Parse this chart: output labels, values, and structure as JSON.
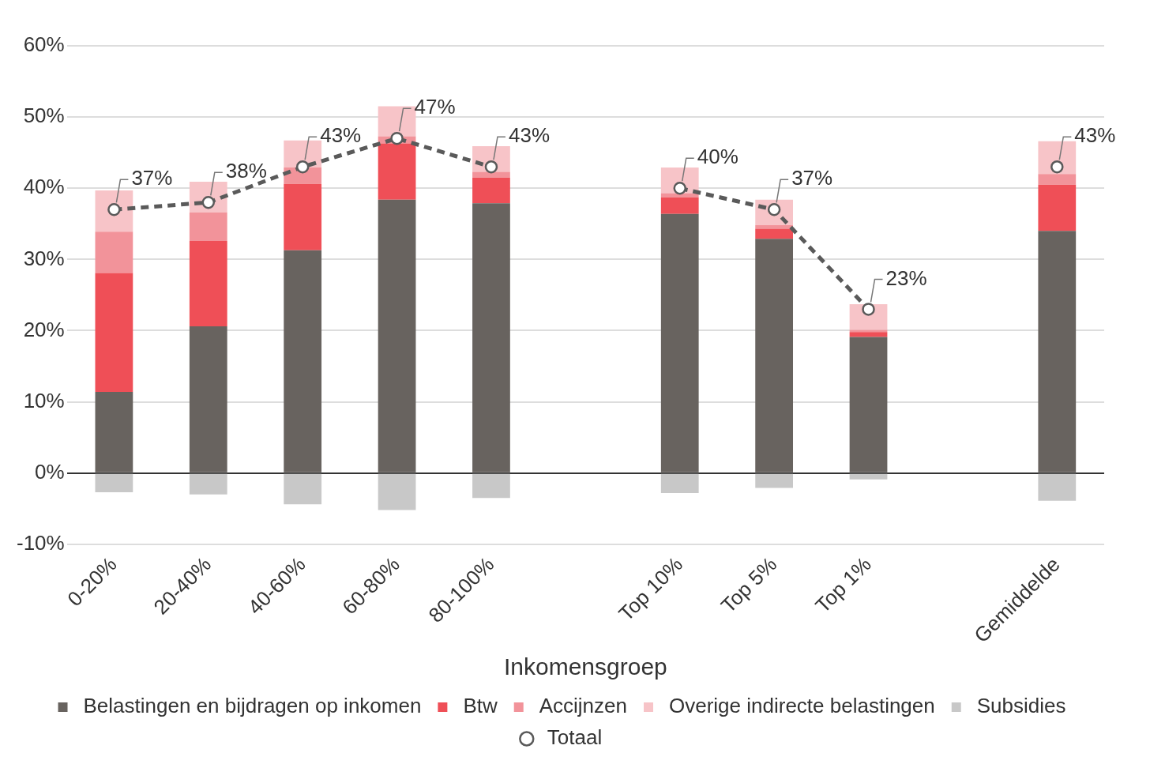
{
  "chart_data": {
    "type": "bar",
    "stacked": true,
    "xlabel": "Inkomensgroep",
    "categories": [
      "0-20%",
      "20-40%",
      "40-60%",
      "60-80%",
      "80-100%",
      null,
      "Top 10%",
      "Top 5%",
      "Top 1%",
      null,
      "Gemiddelde"
    ],
    "series": [
      {
        "name": "Belastingen en bijdragen op inkomen",
        "color": "#68635f",
        "values": [
          11.4,
          20.6,
          31.3,
          38.4,
          37.9,
          null,
          36.4,
          32.9,
          19.1,
          null,
          34.0
        ]
      },
      {
        "name": "Btw",
        "color": "#ef4f57",
        "values": [
          16.7,
          12.0,
          9.3,
          7.9,
          3.6,
          null,
          2.3,
          1.4,
          0.7,
          null,
          6.5
        ]
      },
      {
        "name": "Accijnzen",
        "color": "#f2939a",
        "values": [
          5.8,
          4.0,
          2.3,
          1.0,
          0.8,
          null,
          0.6,
          0.5,
          0.3,
          null,
          1.5
        ]
      },
      {
        "name": "Overige indirecte belastingen",
        "color": "#f7c4c8",
        "values": [
          5.8,
          4.3,
          3.8,
          4.2,
          3.6,
          null,
          3.6,
          3.6,
          3.6,
          null,
          4.6
        ]
      },
      {
        "name": "Subsidies",
        "color": "#c8c8c8",
        "values": [
          -2.7,
          -3.0,
          -4.4,
          -5.2,
          -3.5,
          null,
          -2.8,
          -2.1,
          -0.9,
          null,
          -3.9
        ]
      },
      {
        "name": "Totaal",
        "type": "line",
        "color": "#5a5a5a",
        "values": [
          37,
          38,
          43,
          47,
          43,
          null,
          40,
          37,
          23,
          null,
          43
        ],
        "value_labels": [
          "37%",
          "38%",
          "43%",
          "47%",
          "43%",
          null,
          "40%",
          "37%",
          "23%",
          null,
          "43%"
        ]
      }
    ],
    "ylim": [
      -10,
      60
    ],
    "yticks": [
      {
        "value": -10,
        "label": "-10%"
      },
      {
        "value": 0,
        "label": "0%"
      },
      {
        "value": 10,
        "label": "10%"
      },
      {
        "value": 20,
        "label": "20%"
      },
      {
        "value": 30,
        "label": "30%"
      },
      {
        "value": 40,
        "label": "40%"
      },
      {
        "value": 50,
        "label": "50%"
      },
      {
        "value": 60,
        "label": "60%"
      }
    ],
    "grid": "y",
    "legend": "bottom",
    "marker": "circle",
    "line_style": "dashed"
  }
}
